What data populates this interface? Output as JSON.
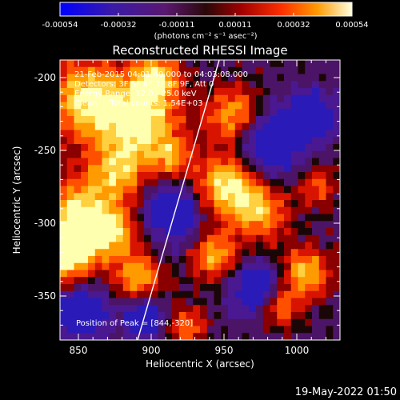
{
  "colorbar": {
    "tick_labels": [
      "-0.00054",
      "-0.00032",
      "-0.00011",
      "0.00011",
      "0.00032",
      "0.00054"
    ],
    "units": "(photons cm⁻² s⁻¹ asec⁻²)"
  },
  "plot": {
    "title": "Reconstructed RHESSI Image",
    "xlabel": "Heliocentric X (arcsec)",
    "ylabel": "Heliocentric Y (arcsec)",
    "x_ticks": [
      "850",
      "900",
      "950",
      "1000"
    ],
    "y_ticks": [
      "-200",
      "-250",
      "-300",
      "-350"
    ]
  },
  "annotations": {
    "line1": "21-Feb-2015 04:01:40.000 to 04:03:08.000",
    "line2": "Detectors: 3F 5F 6F 7F 8F 9F, Att 0",
    "line3": "Energy Range: 12.0 - 25.0 keV",
    "line4": "Clean     Total counts: 1.54E+03",
    "peak": "Position of Peak = [844,-320]"
  },
  "footer": {
    "timestamp": "19-May-2022 01:50"
  },
  "colors": {
    "limb": "#ffffff",
    "background": "#000000"
  }
}
